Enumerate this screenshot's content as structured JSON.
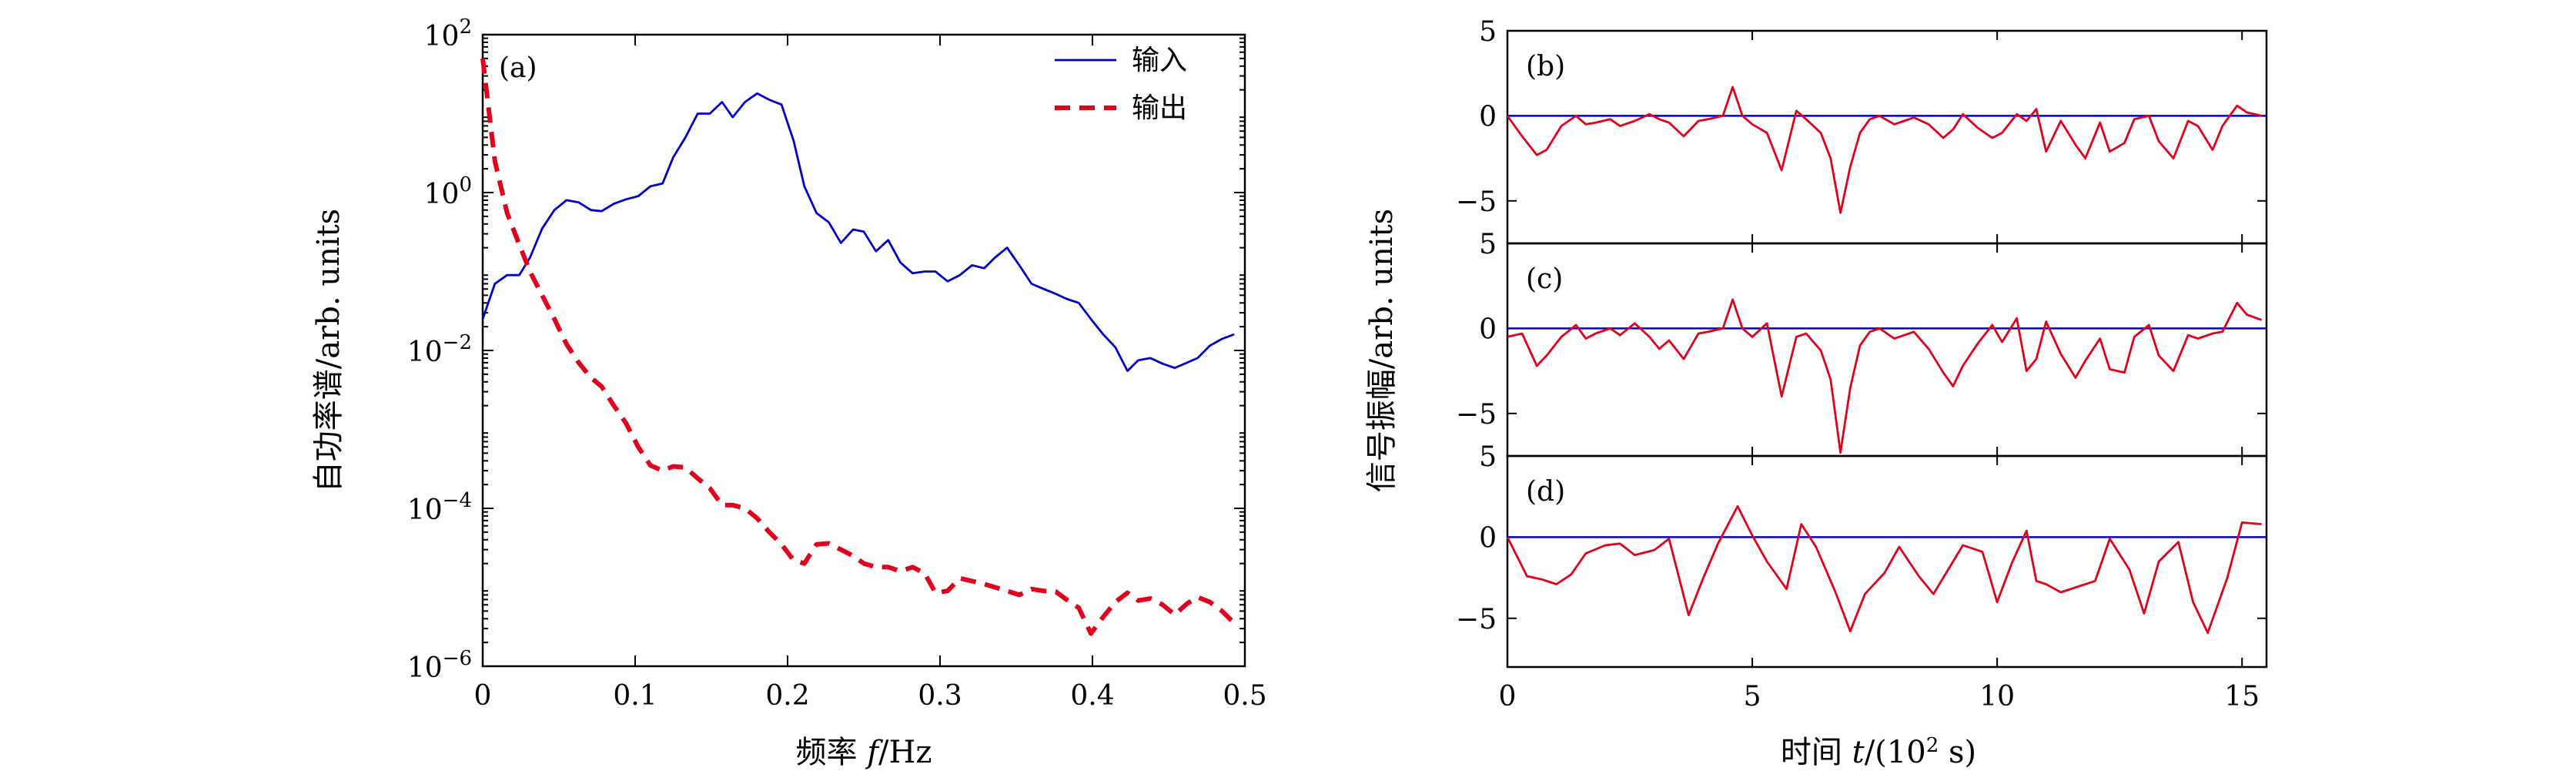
{
  "chart_data": [
    {
      "type": "line",
      "panel_label": "(a)",
      "xlabel_prefix": "频率 ",
      "xlabel_var": "f",
      "xlabel_suffix": "/Hz",
      "ylabel": "自功率谱/arb. units",
      "xlim": [
        0,
        0.5
      ],
      "ylim": [
        1e-06,
        100
      ],
      "yscale": "log",
      "legend_position": "top-right",
      "xticks": [
        0,
        0.1,
        0.2,
        0.3,
        0.4,
        0.5
      ],
      "xtick_labels": [
        "0",
        "0.1",
        "0.2",
        "0.3",
        "0.4",
        "0.5"
      ],
      "yticks": [
        {
          "value": 100,
          "base": "10",
          "exp": "2"
        },
        {
          "value": 1,
          "base": "10",
          "exp": "0"
        },
        {
          "value": 0.01,
          "base": "10",
          "exp": "−2"
        },
        {
          "value": 0.0001,
          "base": "10",
          "exp": "−4"
        },
        {
          "value": 1e-06,
          "base": "10",
          "exp": "−6"
        }
      ],
      "series": [
        {
          "name": "输入",
          "color": "#0000cc",
          "style": "solid",
          "x": [
            0,
            0.008,
            0.016,
            0.024,
            0.031,
            0.039,
            0.047,
            0.055,
            0.063,
            0.071,
            0.078,
            0.086,
            0.094,
            0.102,
            0.11,
            0.118,
            0.125,
            0.133,
            0.141,
            0.149,
            0.157,
            0.164,
            0.172,
            0.18,
            0.188,
            0.196,
            0.204,
            0.211,
            0.219,
            0.227,
            0.235,
            0.243,
            0.25,
            0.258,
            0.266,
            0.274,
            0.282,
            0.29,
            0.297,
            0.305,
            0.313,
            0.321,
            0.329,
            0.336,
            0.344,
            0.352,
            0.36,
            0.368,
            0.376,
            0.383,
            0.391,
            0.399,
            0.407,
            0.415,
            0.423,
            0.43,
            0.438,
            0.446,
            0.454,
            0.462,
            0.469,
            0.477,
            0.485,
            0.493
          ],
          "y": [
            0.025,
            0.07,
            0.09,
            0.09,
            0.15,
            0.35,
            0.6,
            0.8,
            0.75,
            0.6,
            0.58,
            0.72,
            0.82,
            0.9,
            1.2,
            1.3,
            2.8,
            5,
            10,
            10,
            14,
            9,
            14,
            18,
            15,
            13,
            4.5,
            1.2,
            0.55,
            0.42,
            0.23,
            0.34,
            0.32,
            0.18,
            0.25,
            0.13,
            0.095,
            0.1,
            0.1,
            0.075,
            0.09,
            0.12,
            0.11,
            0.15,
            0.2,
            0.12,
            0.07,
            0.06,
            0.052,
            0.045,
            0.04,
            0.025,
            0.016,
            0.011,
            0.0055,
            0.0075,
            0.008,
            0.0068,
            0.006,
            0.007,
            0.008,
            0.0115,
            0.014,
            0.016
          ]
        },
        {
          "name": "输出",
          "color": "#e3001b",
          "style": "dashed",
          "x": [
            0,
            0.008,
            0.016,
            0.024,
            0.031,
            0.039,
            0.047,
            0.055,
            0.063,
            0.071,
            0.078,
            0.086,
            0.094,
            0.102,
            0.11,
            0.118,
            0.125,
            0.133,
            0.141,
            0.149,
            0.157,
            0.164,
            0.172,
            0.18,
            0.188,
            0.196,
            0.204,
            0.211,
            0.219,
            0.227,
            0.235,
            0.243,
            0.25,
            0.258,
            0.266,
            0.274,
            0.282,
            0.29,
            0.297,
            0.305,
            0.313,
            0.321,
            0.329,
            0.336,
            0.344,
            0.352,
            0.36,
            0.368,
            0.376,
            0.383,
            0.391,
            0.399,
            0.407,
            0.415,
            0.423,
            0.43,
            0.438,
            0.446,
            0.454,
            0.462,
            0.469,
            0.477,
            0.485,
            0.493
          ],
          "y": [
            50,
            2.5,
            0.55,
            0.22,
            0.1,
            0.05,
            0.025,
            0.012,
            0.007,
            0.0045,
            0.0035,
            0.002,
            0.0012,
            0.0006,
            0.00035,
            0.0003,
            0.00034,
            0.00033,
            0.00024,
            0.00018,
            0.00011,
            0.00011,
            0.0001,
            7.5e-05,
            5e-05,
            3.5e-05,
            2.2e-05,
            2e-05,
            3.5e-05,
            3.6e-05,
            3e-05,
            2.5e-05,
            2e-05,
            1.8e-05,
            1.8e-05,
            1.6e-05,
            1.8e-05,
            1.5e-05,
            8.5e-06,
            9e-06,
            1.3e-05,
            1.2e-05,
            1.1e-05,
            1e-05,
            9e-06,
            8e-06,
            9.5e-06,
            9e-06,
            8.8e-06,
            7e-06,
            5.5e-06,
            2.6e-06,
            4.2e-06,
            6.5e-06,
            8.5e-06,
            6.8e-06,
            7.2e-06,
            6e-06,
            4.5e-06,
            6.2e-06,
            7.5e-06,
            6.5e-06,
            5e-06,
            3.5e-06
          ]
        }
      ]
    },
    {
      "type": "line",
      "panel_label": "(b)",
      "xlim": [
        0,
        15.5
      ],
      "ylim": [
        -7.5,
        5
      ],
      "yticks": [
        5,
        0,
        -5
      ],
      "ytick_labels": [
        "5",
        "0",
        "−5"
      ],
      "xticks": [
        0,
        5,
        10,
        15
      ],
      "x": [
        0,
        0.3,
        0.6,
        0.8,
        1.1,
        1.4,
        1.6,
        1.8,
        2.1,
        2.3,
        2.6,
        2.9,
        3.1,
        3.3,
        3.6,
        3.9,
        4.1,
        4.4,
        4.6,
        4.8,
        5.0,
        5.3,
        5.6,
        5.9,
        6.1,
        6.4,
        6.6,
        6.8,
        7.0,
        7.2,
        7.4,
        7.6,
        7.9,
        8.1,
        8.3,
        8.6,
        8.9,
        9.1,
        9.3,
        9.6,
        9.9,
        10.1,
        10.4,
        10.6,
        10.8,
        11.0,
        11.3,
        11.6,
        11.8,
        12.1,
        12.3,
        12.6,
        12.8,
        13.1,
        13.3,
        13.6,
        13.9,
        14.1,
        14.4,
        14.6,
        14.9,
        15.1,
        15.4
      ],
      "y": [
        0,
        -1.2,
        -2.3,
        -2.0,
        -0.6,
        0,
        -0.5,
        -0.4,
        -0.2,
        -0.6,
        -0.3,
        0.1,
        -0.2,
        -0.4,
        -1.2,
        -0.3,
        -0.2,
        0,
        1.7,
        0,
        -0.5,
        -1.0,
        -3.2,
        0.3,
        -0.2,
        -1.0,
        -2.5,
        -5.7,
        -3.0,
        -1.0,
        -0.2,
        0,
        -0.5,
        -0.3,
        -0.1,
        -0.5,
        -1.3,
        -0.8,
        0.1,
        -0.7,
        -1.3,
        -1.0,
        0.1,
        -0.3,
        0.4,
        -2.1,
        -0.3,
        -1.7,
        -2.5,
        -0.4,
        -2.1,
        -1.6,
        -0.2,
        0,
        -1.5,
        -2.5,
        -0.3,
        -0.6,
        -2.0,
        -0.6,
        0.6,
        0.2,
        0
      ]
    },
    {
      "type": "line",
      "panel_label": "(c)",
      "xlim": [
        0,
        15.5
      ],
      "ylim": [
        -7.5,
        5
      ],
      "yticks": [
        5,
        0,
        -5
      ],
      "ytick_labels": [
        "5",
        "0",
        "−5"
      ],
      "xticks": [
        0,
        5,
        10,
        15
      ],
      "x": [
        0,
        0.3,
        0.6,
        0.8,
        1.1,
        1.4,
        1.6,
        1.8,
        2.1,
        2.3,
        2.6,
        2.9,
        3.1,
        3.3,
        3.6,
        3.9,
        4.1,
        4.4,
        4.6,
        4.8,
        5.0,
        5.3,
        5.6,
        5.9,
        6.1,
        6.4,
        6.6,
        6.8,
        7.0,
        7.2,
        7.4,
        7.6,
        7.9,
        8.1,
        8.3,
        8.6,
        8.9,
        9.1,
        9.3,
        9.6,
        9.9,
        10.1,
        10.4,
        10.6,
        10.8,
        11.0,
        11.3,
        11.6,
        11.8,
        12.1,
        12.3,
        12.6,
        12.8,
        13.1,
        13.3,
        13.6,
        13.9,
        14.1,
        14.4,
        14.6,
        14.9,
        15.1,
        15.4
      ],
      "y": [
        -0.5,
        -0.3,
        -2.2,
        -1.6,
        -0.5,
        0.2,
        -0.6,
        -0.3,
        0,
        -0.4,
        0.3,
        -0.5,
        -1.2,
        -0.7,
        -1.8,
        -0.3,
        -0.2,
        0,
        1.7,
        0,
        -0.5,
        0.3,
        -4.0,
        -0.5,
        -0.3,
        -1.3,
        -3.0,
        -7.3,
        -3.5,
        -1.0,
        -0.2,
        0,
        -0.6,
        -0.4,
        -0.2,
        -1.2,
        -2.6,
        -3.4,
        -2.2,
        -0.9,
        0.2,
        -0.8,
        0.6,
        -2.5,
        -1.8,
        0.4,
        -1.5,
        -2.9,
        -1.9,
        -0.6,
        -2.4,
        -2.6,
        -0.5,
        0.2,
        -1.6,
        -2.5,
        -0.4,
        -0.6,
        -0.3,
        -0.2,
        1.5,
        0.8,
        0.5
      ]
    },
    {
      "type": "line",
      "panel_label": "(d)",
      "xlim": [
        0,
        15.5
      ],
      "ylim": [
        -8,
        5
      ],
      "yticks": [
        5,
        0,
        -5
      ],
      "ytick_labels": [
        "5",
        "0",
        "−5"
      ],
      "xticks": [
        0,
        5,
        10,
        15
      ],
      "xtick_labels": [
        "0",
        "5",
        "10",
        "15"
      ],
      "xlabel_prefix": "时间 ",
      "xlabel_var": "t",
      "xlabel_mid": "/(10",
      "xlabel_sup": "2",
      "xlabel_suffix": " s)",
      "ylabel": "信号振幅/arb. units",
      "x": [
        0,
        0.4,
        0.7,
        1.0,
        1.3,
        1.6,
        2.0,
        2.3,
        2.6,
        3.0,
        3.3,
        3.7,
        4.0,
        4.3,
        4.7,
        5.0,
        5.3,
        5.7,
        6.0,
        6.3,
        6.7,
        7.0,
        7.3,
        7.7,
        8.0,
        8.4,
        8.7,
        9.0,
        9.3,
        9.7,
        10.0,
        10.3,
        10.6,
        10.8,
        11.0,
        11.3,
        11.7,
        12.0,
        12.3,
        12.7,
        13.0,
        13.3,
        13.7,
        14.0,
        14.3,
        14.7,
        15.0,
        15.4
      ],
      "y": [
        0,
        -2.4,
        -2.6,
        -2.9,
        -2.3,
        -1.0,
        -0.5,
        -0.4,
        -1.1,
        -0.8,
        -0.1,
        -4.8,
        -2.5,
        -0.4,
        1.9,
        0.1,
        -1.5,
        -3.2,
        0.8,
        -0.6,
        -3.4,
        -5.8,
        -3.5,
        -2.2,
        -0.6,
        -2.4,
        -3.5,
        -2.0,
        -0.5,
        -0.9,
        -4.0,
        -1.6,
        0.4,
        -2.7,
        -2.9,
        -3.4,
        -3.0,
        -2.7,
        -0.1,
        -2.0,
        -4.7,
        -1.5,
        -0.3,
        -4.0,
        -5.9,
        -2.5,
        0.9,
        0.8
      ]
    }
  ]
}
